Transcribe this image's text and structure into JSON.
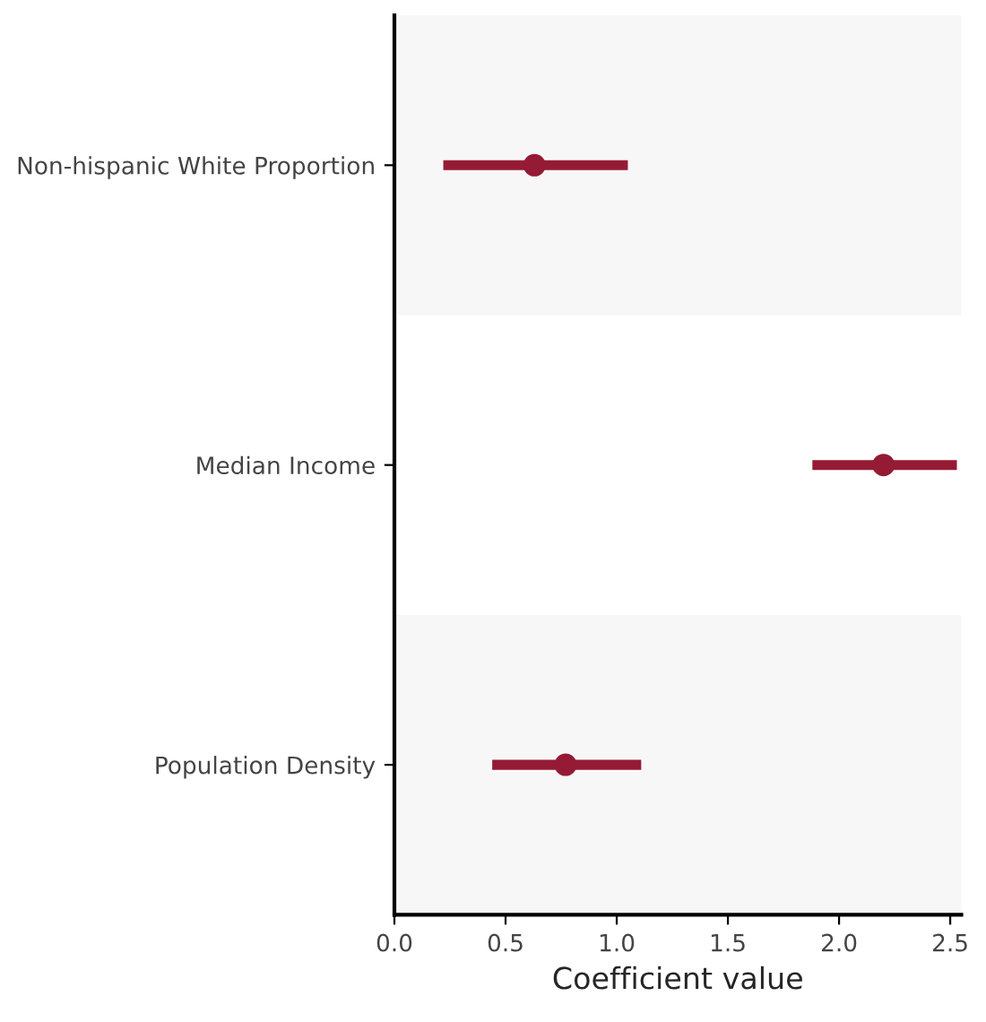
{
  "chart_data": {
    "type": "scatter",
    "orientation": "horizontal",
    "categories": [
      "Non-hispanic White Proportion",
      "Median Income",
      "Population Density"
    ],
    "values": [
      0.63,
      2.2,
      0.77
    ],
    "errors": [
      [
        0.22,
        1.05
      ],
      [
        1.88,
        2.53
      ],
      [
        0.44,
        1.11
      ]
    ],
    "color": "#951b35",
    "marker": "circle",
    "xlabel": "Coefficient value",
    "xlim": [
      0,
      2.55
    ],
    "xticks": [
      {
        "value": 0,
        "label": "0.0"
      },
      0.5,
      {
        "value": 1,
        "label": "1.0"
      },
      1.5,
      {
        "value": 2,
        "label": "2.0"
      },
      2.5
    ],
    "grid": false,
    "legend": false
  }
}
